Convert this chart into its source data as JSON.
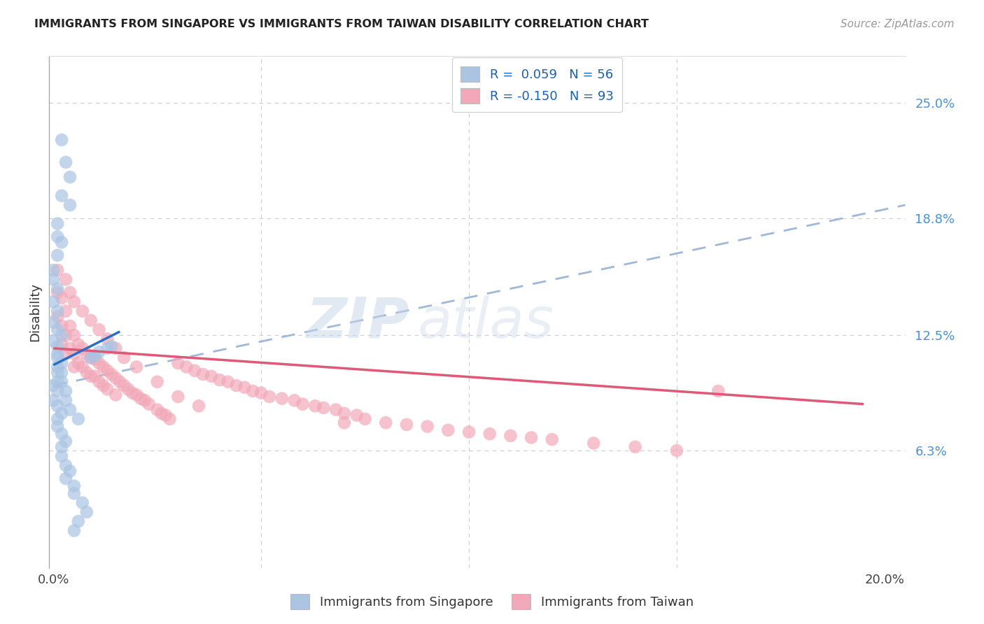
{
  "title": "IMMIGRANTS FROM SINGAPORE VS IMMIGRANTS FROM TAIWAN DISABILITY CORRELATION CHART",
  "source": "Source: ZipAtlas.com",
  "ylabel": "Disability",
  "ytick_labels": [
    "6.3%",
    "12.5%",
    "18.8%",
    "25.0%"
  ],
  "ytick_values": [
    0.063,
    0.125,
    0.188,
    0.25
  ],
  "xlim": [
    -0.001,
    0.205
  ],
  "ylim": [
    0.0,
    0.275
  ],
  "color_singapore": "#aac4e2",
  "color_taiwan": "#f2a8b8",
  "trendline_singapore_color": "#2a6fc4",
  "trendline_taiwan_color": "#e05878",
  "trendline_dashed_color": "#a0b8d8",
  "watermark_zip": "ZIP",
  "watermark_atlas": "atlas",
  "sg_trend_x": [
    0.0,
    0.016
  ],
  "sg_trend_y": [
    0.109,
    0.127
  ],
  "tw_trend_x": [
    0.0,
    0.195
  ],
  "tw_trend_y": [
    0.118,
    0.088
  ],
  "dash_trend_x": [
    0.0,
    0.205
  ],
  "dash_trend_y": [
    0.098,
    0.195
  ],
  "singapore_x": [
    0.002,
    0.003,
    0.004,
    0.002,
    0.004,
    0.001,
    0.001,
    0.002,
    0.001,
    0.0,
    0.0,
    0.001,
    0.0,
    0.001,
    0.0,
    0.001,
    0.002,
    0.0,
    0.001,
    0.001,
    0.001,
    0.002,
    0.001,
    0.002,
    0.001,
    0.0,
    0.001,
    0.0,
    0.001,
    0.002,
    0.001,
    0.001,
    0.002,
    0.003,
    0.002,
    0.002,
    0.003,
    0.004,
    0.003,
    0.005,
    0.005,
    0.007,
    0.008,
    0.006,
    0.005,
    0.009,
    0.01,
    0.011,
    0.013,
    0.014,
    0.001,
    0.002,
    0.003,
    0.003,
    0.004,
    0.006
  ],
  "singapore_y": [
    0.23,
    0.218,
    0.21,
    0.2,
    0.195,
    0.185,
    0.178,
    0.175,
    0.168,
    0.16,
    0.155,
    0.15,
    0.143,
    0.138,
    0.132,
    0.128,
    0.125,
    0.122,
    0.119,
    0.115,
    0.113,
    0.11,
    0.108,
    0.105,
    0.1,
    0.098,
    0.095,
    0.09,
    0.087,
    0.083,
    0.08,
    0.076,
    0.072,
    0.068,
    0.065,
    0.06,
    0.055,
    0.052,
    0.048,
    0.044,
    0.04,
    0.035,
    0.03,
    0.025,
    0.02,
    0.113,
    0.114,
    0.116,
    0.118,
    0.119,
    0.105,
    0.1,
    0.095,
    0.09,
    0.085,
    0.08
  ],
  "taiwan_x": [
    0.001,
    0.001,
    0.001,
    0.002,
    0.002,
    0.002,
    0.003,
    0.003,
    0.003,
    0.004,
    0.004,
    0.005,
    0.005,
    0.005,
    0.006,
    0.006,
    0.007,
    0.007,
    0.008,
    0.008,
    0.009,
    0.009,
    0.01,
    0.01,
    0.011,
    0.011,
    0.012,
    0.012,
    0.013,
    0.013,
    0.014,
    0.015,
    0.015,
    0.016,
    0.017,
    0.018,
    0.019,
    0.02,
    0.021,
    0.022,
    0.023,
    0.025,
    0.026,
    0.027,
    0.028,
    0.03,
    0.032,
    0.034,
    0.036,
    0.038,
    0.04,
    0.042,
    0.044,
    0.046,
    0.048,
    0.05,
    0.052,
    0.055,
    0.058,
    0.06,
    0.063,
    0.065,
    0.068,
    0.07,
    0.073,
    0.075,
    0.08,
    0.085,
    0.09,
    0.095,
    0.1,
    0.105,
    0.11,
    0.115,
    0.12,
    0.13,
    0.14,
    0.15,
    0.003,
    0.004,
    0.005,
    0.007,
    0.009,
    0.011,
    0.013,
    0.015,
    0.017,
    0.02,
    0.025,
    0.03,
    0.035,
    0.16,
    0.07
  ],
  "taiwan_y": [
    0.16,
    0.148,
    0.135,
    0.145,
    0.13,
    0.12,
    0.138,
    0.125,
    0.115,
    0.13,
    0.118,
    0.125,
    0.115,
    0.108,
    0.12,
    0.11,
    0.118,
    0.108,
    0.115,
    0.105,
    0.113,
    0.103,
    0.112,
    0.103,
    0.11,
    0.1,
    0.108,
    0.098,
    0.106,
    0.096,
    0.104,
    0.102,
    0.093,
    0.1,
    0.098,
    0.096,
    0.094,
    0.093,
    0.091,
    0.09,
    0.088,
    0.085,
    0.083,
    0.082,
    0.08,
    0.11,
    0.108,
    0.106,
    0.104,
    0.103,
    0.101,
    0.1,
    0.098,
    0.097,
    0.095,
    0.094,
    0.092,
    0.091,
    0.09,
    0.088,
    0.087,
    0.086,
    0.085,
    0.083,
    0.082,
    0.08,
    0.078,
    0.077,
    0.076,
    0.074,
    0.073,
    0.072,
    0.071,
    0.07,
    0.069,
    0.067,
    0.065,
    0.063,
    0.155,
    0.148,
    0.143,
    0.138,
    0.133,
    0.128,
    0.123,
    0.118,
    0.113,
    0.108,
    0.1,
    0.092,
    0.087,
    0.095,
    0.078
  ]
}
